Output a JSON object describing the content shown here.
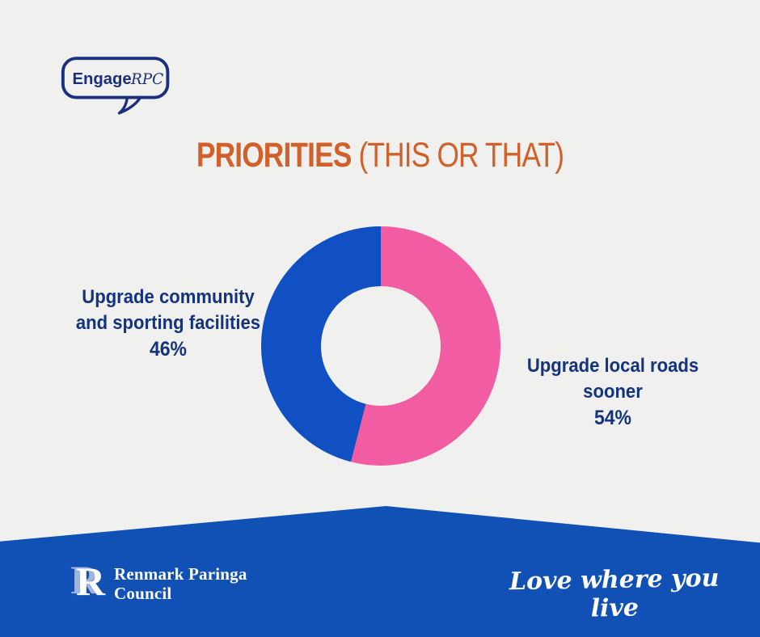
{
  "page": {
    "background": "#F0F1EF"
  },
  "engage_logo": {
    "word_bold": "Engage",
    "word_script": "RPC",
    "color": "#1B2F7E"
  },
  "title": {
    "bold": "PRIORITIES ",
    "light": "(THIS OR THAT)",
    "color": "#D2602A"
  },
  "chart_data": {
    "type": "pie",
    "donut": true,
    "title": "PRIORITIES (THIS OR THAT)",
    "start_angle_deg": 0,
    "direction": "clockwise",
    "inner_radius_ratio": 0.5,
    "segments": [
      {
        "label": "Upgrade local roads sooner",
        "value": 54,
        "color": "#F15CA2"
      },
      {
        "label": "Upgrade community and sporting facilities",
        "value": 46,
        "color": "#1150C2"
      }
    ]
  },
  "labels": {
    "left": {
      "line1": "Upgrade community",
      "line2": "and sporting facilities",
      "pct": "46%"
    },
    "right": {
      "line1": "Upgrade local roads sooner",
      "pct": "54%"
    },
    "color": "#14337E"
  },
  "footer": {
    "background": "#1150B5",
    "logo_letter": "R",
    "council_line1": "Renmark Paringa",
    "council_line2": "Council",
    "tagline": "Love where you live"
  }
}
